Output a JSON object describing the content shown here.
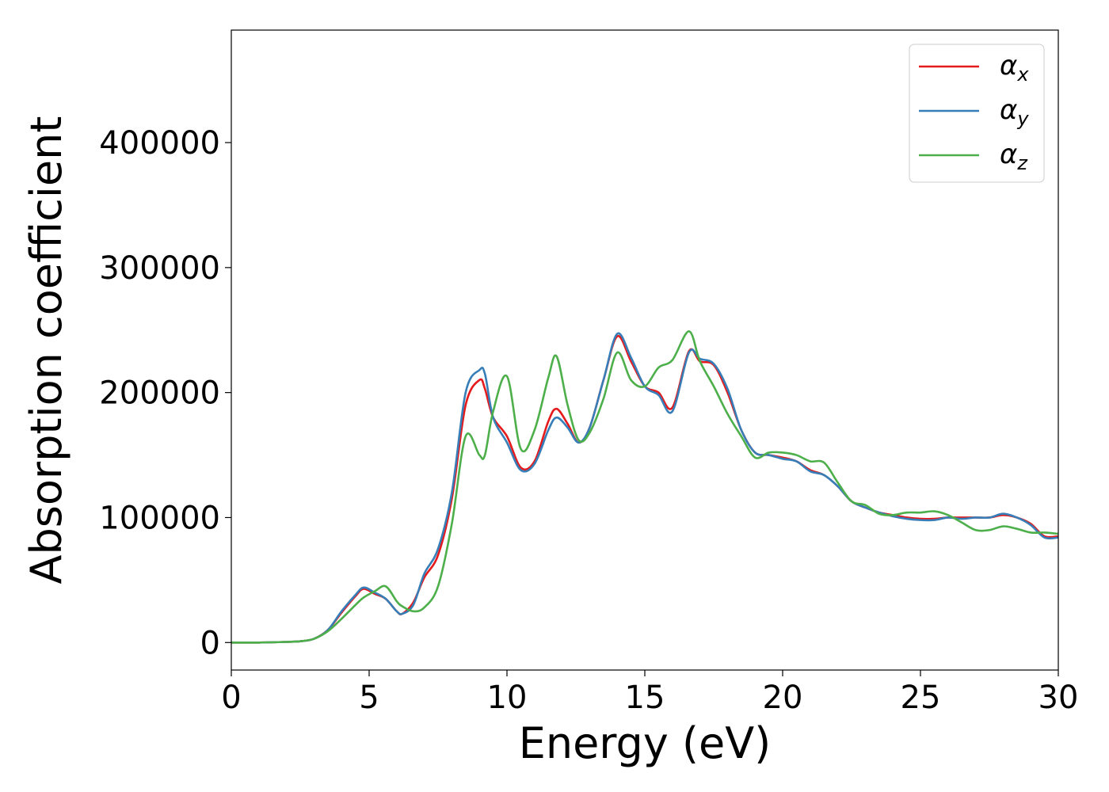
{
  "chart_data": {
    "type": "line",
    "title": "",
    "xlabel": "Energy (eV)",
    "ylabel": "Absorption coefficient",
    "xlim": [
      0,
      30
    ],
    "ylim": [
      -22000,
      490000
    ],
    "xticks": [
      0,
      5,
      10,
      15,
      20,
      25,
      30
    ],
    "yticks": [
      0,
      100000,
      200000,
      300000,
      400000
    ],
    "grid": false,
    "legend_position": "top-right",
    "x": [
      0,
      1,
      2,
      2.5,
      3,
      3.5,
      4,
      4.5,
      4.8,
      5.2,
      5.6,
      6.0,
      6.2,
      6.6,
      7.0,
      7.5,
      8.0,
      8.5,
      9.0,
      9.2,
      9.5,
      10.0,
      10.5,
      11.0,
      11.5,
      11.8,
      12.2,
      12.6,
      13.0,
      13.5,
      14.0,
      14.5,
      15.0,
      15.5,
      16.0,
      16.6,
      17.0,
      17.5,
      18.0,
      18.5,
      19.0,
      19.5,
      20.0,
      20.5,
      21.0,
      21.5,
      22.0,
      22.5,
      23.0,
      23.5,
      24.0,
      24.5,
      25.0,
      25.5,
      26.0,
      26.5,
      27.0,
      27.5,
      28.0,
      28.5,
      29.0,
      29.5,
      30.0
    ],
    "series": [
      {
        "name": "α_x",
        "color": "#e41a1c",
        "values": [
          0,
          0,
          500,
          1000,
          3000,
          10000,
          24000,
          37000,
          43000,
          39000,
          35000,
          25000,
          23000,
          32000,
          52000,
          70000,
          115000,
          190000,
          210000,
          203000,
          180000,
          165000,
          140000,
          145000,
          177000,
          187000,
          175000,
          160000,
          172000,
          210000,
          245000,
          225000,
          205000,
          200000,
          188000,
          233000,
          225000,
          222000,
          200000,
          170000,
          152000,
          150000,
          148000,
          145000,
          138000,
          134000,
          125000,
          113000,
          108000,
          104000,
          102000,
          100000,
          99000,
          99000,
          100000,
          100000,
          100000,
          100000,
          102000,
          100000,
          95000,
          85000,
          85000
        ]
      },
      {
        "name": "α_y",
        "color": "#377eb8",
        "values": [
          0,
          0,
          500,
          1000,
          3000,
          10000,
          25000,
          38000,
          44000,
          40000,
          35000,
          25000,
          23000,
          30000,
          55000,
          75000,
          120000,
          200000,
          218000,
          215000,
          180000,
          160000,
          138000,
          143000,
          170000,
          180000,
          172000,
          160000,
          172000,
          210000,
          247000,
          228000,
          205000,
          198000,
          185000,
          232000,
          227000,
          223000,
          203000,
          170000,
          152000,
          150000,
          147000,
          145000,
          137000,
          134000,
          125000,
          113000,
          108000,
          104000,
          101000,
          99000,
          98000,
          98000,
          100000,
          99000,
          100000,
          100000,
          103000,
          100000,
          94000,
          84000,
          84000
        ]
      },
      {
        "name": "α_z",
        "color": "#4daf4a",
        "values": [
          0,
          0,
          500,
          1000,
          3000,
          9000,
          19000,
          30000,
          36000,
          41000,
          45000,
          33000,
          29000,
          25000,
          28000,
          45000,
          95000,
          165000,
          150000,
          150000,
          185000,
          213000,
          155000,
          170000,
          212000,
          229000,
          190000,
          162000,
          168000,
          195000,
          232000,
          210000,
          205000,
          220000,
          226000,
          249000,
          225000,
          205000,
          183000,
          165000,
          148000,
          152000,
          152000,
          150000,
          145000,
          144000,
          128000,
          113000,
          110000,
          103000,
          102000,
          104000,
          104000,
          105000,
          102000,
          96000,
          90000,
          90000,
          93000,
          91000,
          88000,
          88000,
          87000
        ]
      }
    ]
  },
  "legend": [
    {
      "symbol": "α",
      "sub": "x",
      "color": "#e41a1c"
    },
    {
      "symbol": "α",
      "sub": "y",
      "color": "#377eb8"
    },
    {
      "symbol": "α",
      "sub": "z",
      "color": "#4daf4a"
    }
  ]
}
